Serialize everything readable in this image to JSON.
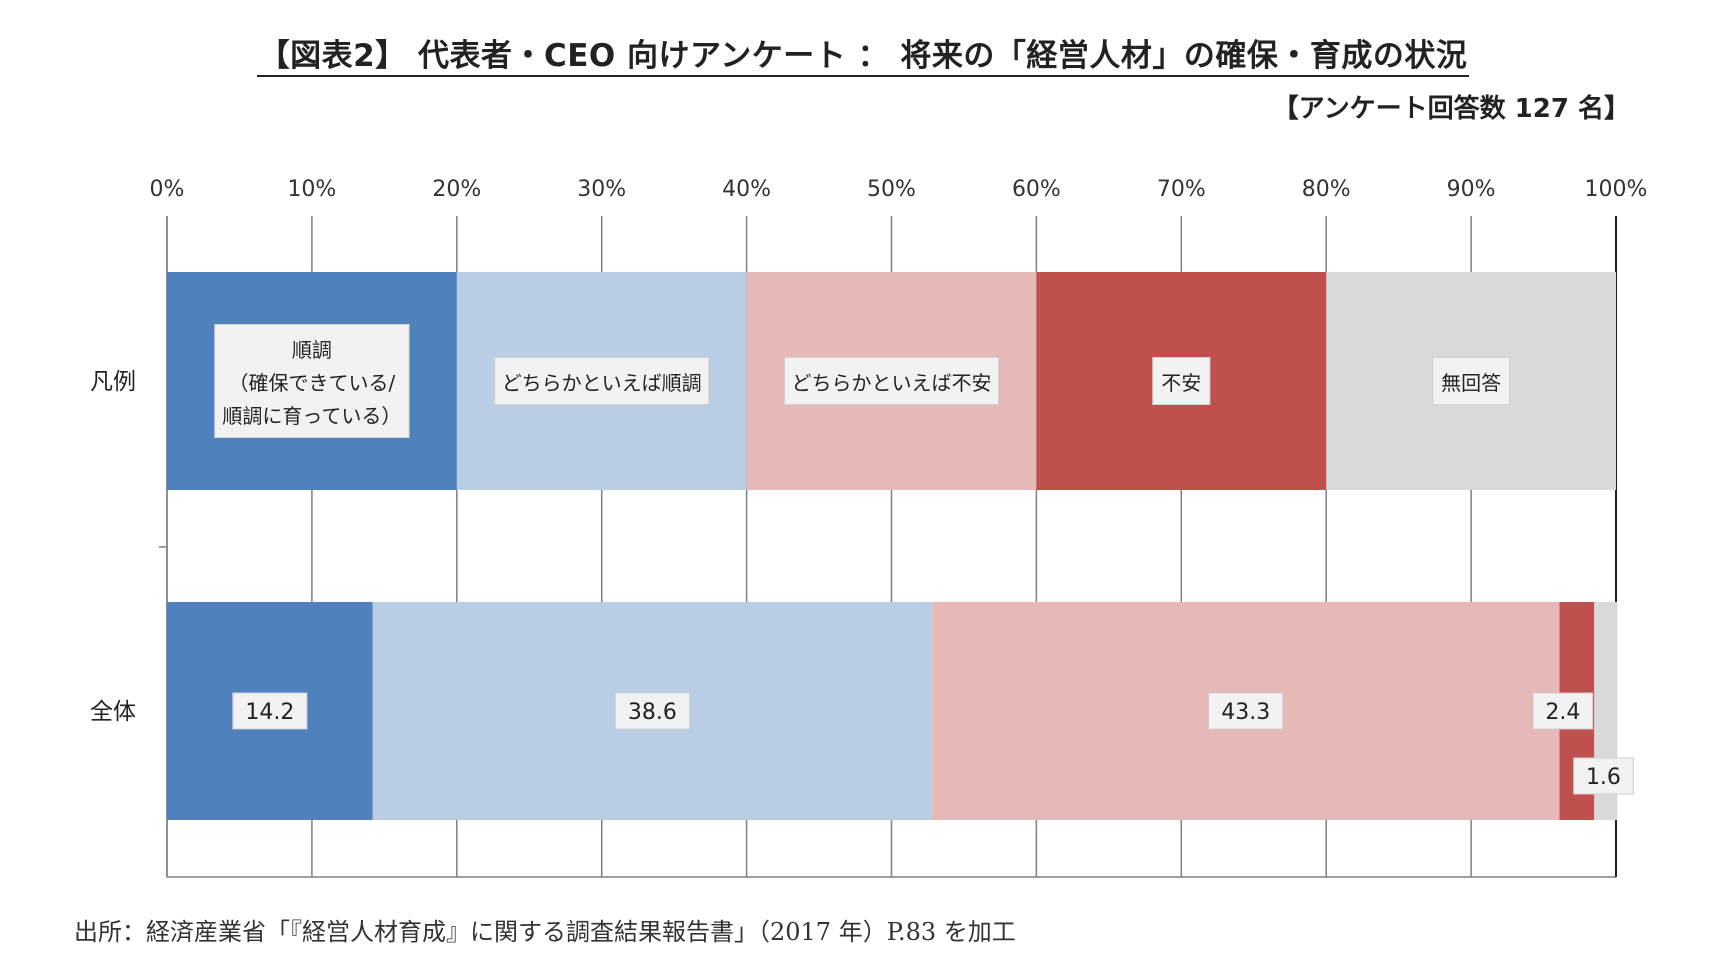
{
  "title": "【図表2】 代表者・CEO 向けアンケート ： 将来の「経営人材」の確保・育成の状況",
  "subtitle": "【アンケート回答数 127 名】",
  "source": "出所：経済産業省「『経営人材育成』に関する調査結果報告書」（2017 年）P.83 を加工",
  "chart_data": {
    "type": "bar",
    "orientation": "horizontal",
    "stacked": true,
    "xlim": [
      0,
      100
    ],
    "x_ticks": [
      "0%",
      "10%",
      "20%",
      "30%",
      "40%",
      "50%",
      "60%",
      "70%",
      "80%",
      "90%",
      "100%"
    ],
    "x_axis_position": "top",
    "grid": true,
    "categories": [
      "凡例",
      "全体"
    ],
    "series": [
      {
        "color": "#4f81bd",
        "values": [
          20,
          14.2
        ]
      },
      {
        "color": "#b9cde5",
        "values": [
          20,
          38.6
        ]
      },
      {
        "color": "#e6b9b8",
        "values": [
          20,
          43.3
        ]
      },
      {
        "color": "#c0504d",
        "values": [
          20,
          2.4
        ]
      },
      {
        "color": "#d9d9d9",
        "values": [
          20,
          1.6
        ]
      }
    ],
    "legend_row_labels": [
      [
        "順調",
        "（確保できている/",
        "順調に育っている）"
      ],
      [
        "どちらかといえば順調"
      ],
      [
        "どちらかといえば不安"
      ],
      [
        "不安"
      ],
      [
        "無回答"
      ]
    ],
    "data_labels": [
      "14.2",
      "38.6",
      "43.3",
      "2.4",
      "1.6"
    ]
  }
}
